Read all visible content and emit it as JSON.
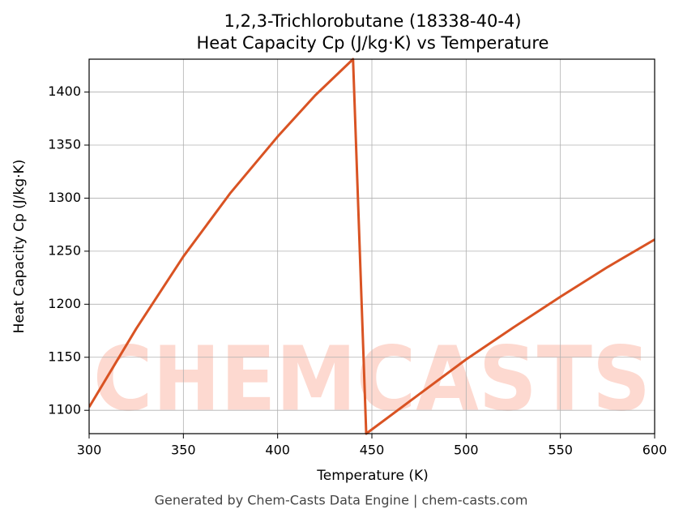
{
  "chart_data": {
    "type": "line",
    "title": "1,2,3-Trichlorobutane (18338-40-4)",
    "subtitle": "Heat Capacity Cp (J/kg·K) vs Temperature",
    "x_label": "Temperature (K)",
    "y_label": "Heat Capacity Cp (J/kg·K)",
    "watermark": "CHEMCASTS",
    "footer": "Generated by Chem-Casts Data Engine | chem-casts.com",
    "x": [
      300,
      325,
      350,
      375,
      400,
      420,
      440,
      447,
      475,
      500,
      525,
      550,
      575,
      600
    ],
    "series": [
      {
        "name": "Cp",
        "color": "#d95323",
        "values": [
          1103,
          1177,
          1245,
          1305,
          1358,
          1397,
          1431,
          1078,
          1115,
          1148,
          1178,
          1207,
          1235,
          1261
        ]
      }
    ],
    "xlim": [
      300,
      600
    ],
    "ylim": [
      1078,
      1431
    ],
    "xticks": [
      300,
      350,
      400,
      450,
      500,
      550,
      600
    ],
    "yticks": [
      1100,
      1150,
      1200,
      1250,
      1300,
      1350,
      1400
    ],
    "grid": true
  }
}
